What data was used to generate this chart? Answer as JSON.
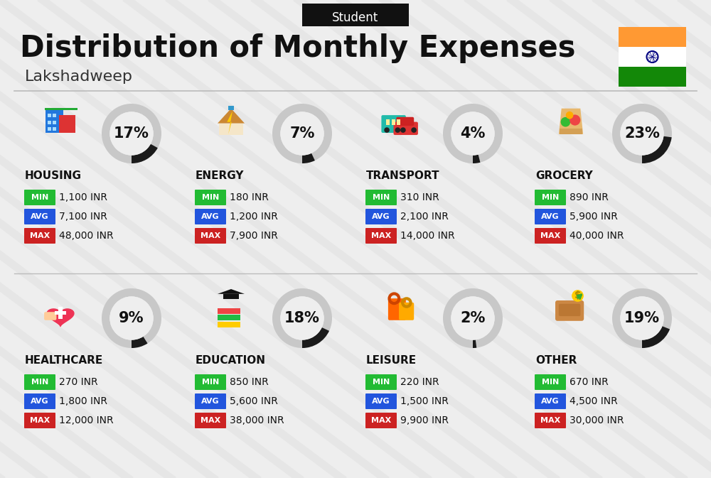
{
  "title": "Distribution of Monthly Expenses",
  "subtitle": "Lakshadweep",
  "tag": "Student",
  "bg_color": "#eeeeee",
  "categories": [
    {
      "name": "HOUSING",
      "pct": 17,
      "min": "1,100 INR",
      "avg": "7,100 INR",
      "max": "48,000 INR",
      "icon": "housing",
      "row": 0,
      "col": 0
    },
    {
      "name": "ENERGY",
      "pct": 7,
      "min": "180 INR",
      "avg": "1,200 INR",
      "max": "7,900 INR",
      "icon": "energy",
      "row": 0,
      "col": 1
    },
    {
      "name": "TRANSPORT",
      "pct": 4,
      "min": "310 INR",
      "avg": "2,100 INR",
      "max": "14,000 INR",
      "icon": "transport",
      "row": 0,
      "col": 2
    },
    {
      "name": "GROCERY",
      "pct": 23,
      "min": "890 INR",
      "avg": "5,900 INR",
      "max": "40,000 INR",
      "icon": "grocery",
      "row": 0,
      "col": 3
    },
    {
      "name": "HEALTHCARE",
      "pct": 9,
      "min": "270 INR",
      "avg": "1,800 INR",
      "max": "12,000 INR",
      "icon": "healthcare",
      "row": 1,
      "col": 0
    },
    {
      "name": "EDUCATION",
      "pct": 18,
      "min": "850 INR",
      "avg": "5,600 INR",
      "max": "38,000 INR",
      "icon": "education",
      "row": 1,
      "col": 1
    },
    {
      "name": "LEISURE",
      "pct": 2,
      "min": "220 INR",
      "avg": "1,500 INR",
      "max": "9,900 INR",
      "icon": "leisure",
      "row": 1,
      "col": 2
    },
    {
      "name": "OTHER",
      "pct": 19,
      "min": "670 INR",
      "avg": "4,500 INR",
      "max": "30,000 INR",
      "icon": "other",
      "row": 1,
      "col": 3
    }
  ],
  "color_min": "#22bb33",
  "color_avg": "#2255dd",
  "color_max": "#cc2222",
  "donut_filled": "#1a1a1a",
  "donut_empty": "#c8c8c8",
  "india_flag_orange": "#FF9933",
  "india_flag_green": "#138808",
  "india_flag_white": "#FFFFFF",
  "india_flag_navy": "#000080"
}
